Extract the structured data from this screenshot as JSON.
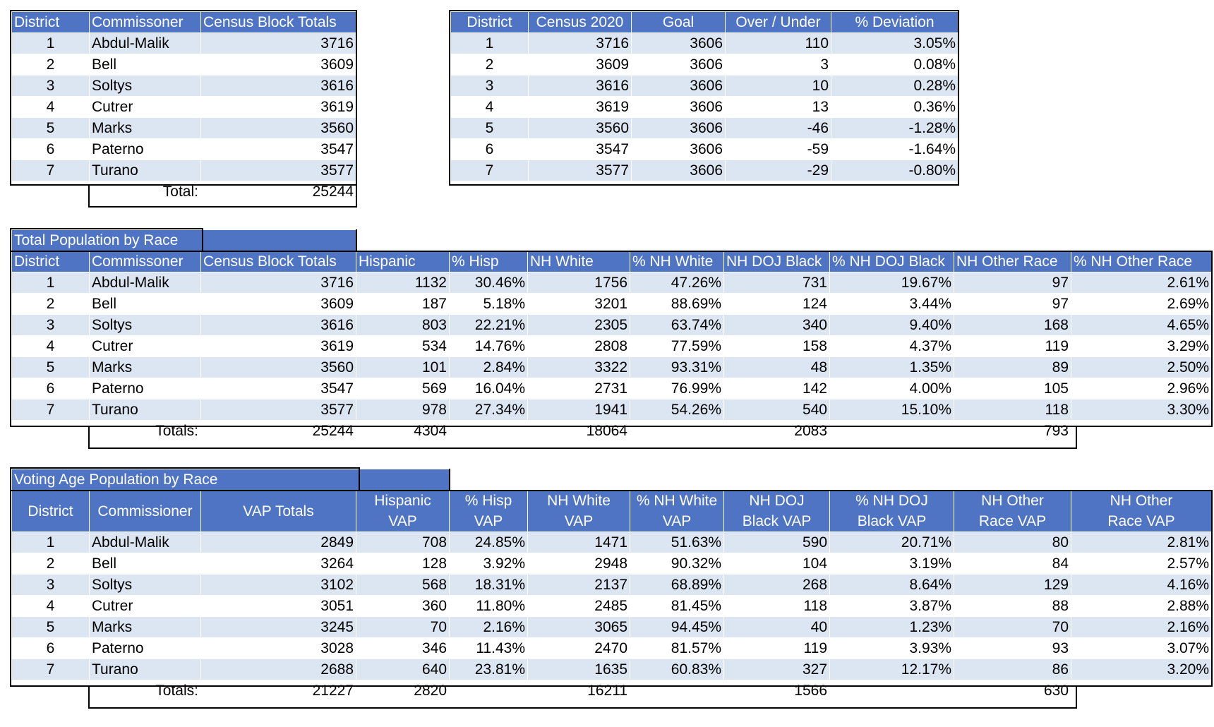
{
  "district_totals": {
    "headers": [
      "District",
      "Commissoner",
      "Census Block Totals"
    ],
    "rows": [
      [
        "1",
        "Abdul-Malik",
        "3716"
      ],
      [
        "2",
        "Bell",
        "3609"
      ],
      [
        "3",
        "Soltys",
        "3616"
      ],
      [
        "4",
        "Cutrer",
        "3619"
      ],
      [
        "5",
        "Marks",
        "3560"
      ],
      [
        "6",
        "Paterno",
        "3547"
      ],
      [
        "7",
        "Turano",
        "3577"
      ]
    ],
    "total_label": "Total:",
    "total_value": "25244"
  },
  "deviation": {
    "headers": [
      "District",
      "Census 2020",
      "Goal",
      "Over / Under",
      "% Deviation"
    ],
    "rows": [
      [
        "1",
        "3716",
        "3606",
        "110",
        "3.05%"
      ],
      [
        "2",
        "3609",
        "3606",
        "3",
        "0.08%"
      ],
      [
        "3",
        "3616",
        "3606",
        "10",
        "0.28%"
      ],
      [
        "4",
        "3619",
        "3606",
        "13",
        "0.36%"
      ],
      [
        "5",
        "3560",
        "3606",
        "-46",
        "-1.28%"
      ],
      [
        "6",
        "3547",
        "3606",
        "-59",
        "-1.64%"
      ],
      [
        "7",
        "3577",
        "3606",
        "-29",
        "-0.80%"
      ]
    ]
  },
  "total_population": {
    "title": "Total Population by Race",
    "headers": [
      "District",
      "Commissoner",
      "Census Block Totals",
      "Hispanic",
      "% Hisp",
      "NH White",
      "% NH White",
      "NH DOJ Black",
      "% NH DOJ Black",
      "NH Other Race",
      "% NH Other Race"
    ],
    "rows": [
      [
        "1",
        "Abdul-Malik",
        "3716",
        "1132",
        "30.46%",
        "1756",
        "47.26%",
        "731",
        "19.67%",
        "97",
        "2.61%"
      ],
      [
        "2",
        "Bell",
        "3609",
        "187",
        "5.18%",
        "3201",
        "88.69%",
        "124",
        "3.44%",
        "97",
        "2.69%"
      ],
      [
        "3",
        "Soltys",
        "3616",
        "803",
        "22.21%",
        "2305",
        "63.74%",
        "340",
        "9.40%",
        "168",
        "4.65%"
      ],
      [
        "4",
        "Cutrer",
        "3619",
        "534",
        "14.76%",
        "2808",
        "77.59%",
        "158",
        "4.37%",
        "119",
        "3.29%"
      ],
      [
        "5",
        "Marks",
        "3560",
        "101",
        "2.84%",
        "3322",
        "93.31%",
        "48",
        "1.35%",
        "89",
        "2.50%"
      ],
      [
        "6",
        "Paterno",
        "3547",
        "569",
        "16.04%",
        "2731",
        "76.99%",
        "142",
        "4.00%",
        "105",
        "2.96%"
      ],
      [
        "7",
        "Turano",
        "3577",
        "978",
        "27.34%",
        "1941",
        "54.26%",
        "540",
        "15.10%",
        "118",
        "3.30%"
      ]
    ],
    "totals": [
      "Totals:",
      "25244",
      "4304",
      "",
      "18064",
      "",
      "2083",
      "",
      "793"
    ]
  },
  "voting_age": {
    "title": "Voting Age Population by Race",
    "headers": [
      [
        "District"
      ],
      [
        "Commissioner"
      ],
      [
        "VAP Totals"
      ],
      [
        "Hispanic",
        "VAP"
      ],
      [
        "% Hisp",
        "VAP"
      ],
      [
        "NH White",
        "VAP"
      ],
      [
        "% NH White",
        "VAP"
      ],
      [
        "NH DOJ",
        "Black VAP"
      ],
      [
        "% NH DOJ",
        "Black VAP"
      ],
      [
        "NH Other",
        "Race VAP"
      ],
      [
        "NH Other",
        "Race VAP"
      ]
    ],
    "rows": [
      [
        "1",
        "Abdul-Malik",
        "2849",
        "708",
        "24.85%",
        "1471",
        "51.63%",
        "590",
        "20.71%",
        "80",
        "2.81%"
      ],
      [
        "2",
        "Bell",
        "3264",
        "128",
        "3.92%",
        "2948",
        "90.32%",
        "104",
        "3.19%",
        "84",
        "2.57%"
      ],
      [
        "3",
        "Soltys",
        "3102",
        "568",
        "18.31%",
        "2137",
        "68.89%",
        "268",
        "8.64%",
        "129",
        "4.16%"
      ],
      [
        "4",
        "Cutrer",
        "3051",
        "360",
        "11.80%",
        "2485",
        "81.45%",
        "118",
        "3.87%",
        "88",
        "2.88%"
      ],
      [
        "5",
        "Marks",
        "3245",
        "70",
        "2.16%",
        "3065",
        "94.45%",
        "40",
        "1.23%",
        "70",
        "2.16%"
      ],
      [
        "6",
        "Paterno",
        "3028",
        "346",
        "11.43%",
        "2470",
        "81.57%",
        "119",
        "3.93%",
        "93",
        "3.07%"
      ],
      [
        "7",
        "Turano",
        "2688",
        "640",
        "23.81%",
        "1635",
        "60.83%",
        "327",
        "12.17%",
        "86",
        "3.20%"
      ]
    ],
    "totals": [
      "Totals:",
      "21227",
      "2820",
      "",
      "16211",
      "",
      "1566",
      "",
      "630"
    ]
  },
  "colors": {
    "header": "#4f74c4",
    "band": "#dce6f2",
    "border": "#000000"
  }
}
